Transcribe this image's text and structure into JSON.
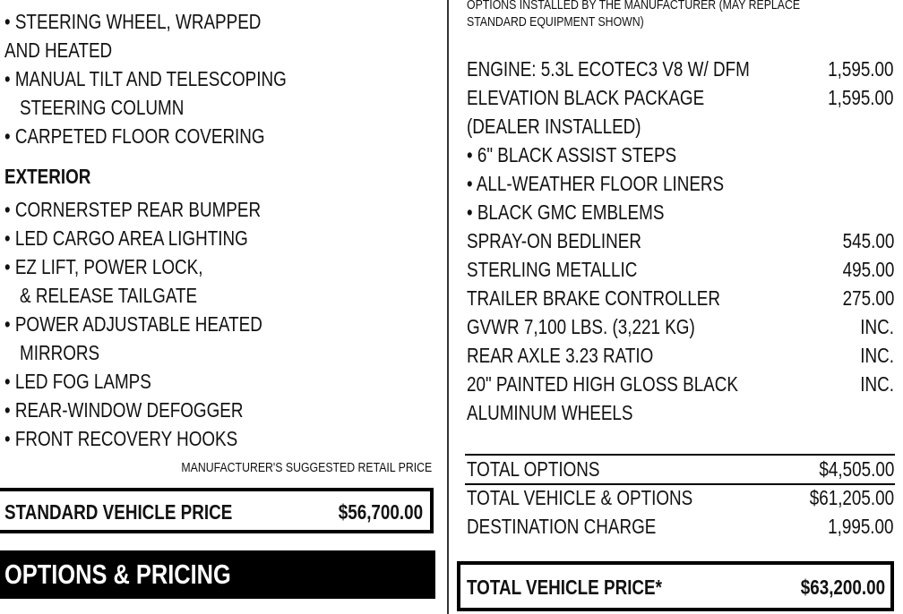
{
  "left": {
    "interior_lines": [
      "• STEERING WHEEL, WRAPPED",
      "AND HEATED",
      "• MANUAL TILT AND TELESCOPING",
      "STEERING COLUMN",
      "• CARPETED FLOOR COVERING"
    ],
    "exterior_heading": "EXTERIOR",
    "exterior_lines": [
      "• CORNERSTEP REAR BUMPER",
      "• LED CARGO AREA LIGHTING",
      "• EZ LIFT, POWER LOCK,",
      "& RELEASE TAILGATE",
      "• POWER ADJUSTABLE HEATED",
      "MIRRORS",
      "• LED FOG LAMPS",
      "• REAR-WINDOW DEFOGGER",
      "• FRONT RECOVERY HOOKS"
    ],
    "msrp_label": "MANUFACTURER'S SUGGESTED RETAIL PRICE",
    "standard_label": "STANDARD VEHICLE PRICE",
    "standard_price": "$56,700.00",
    "options_heading": "OPTIONS & PRICING"
  },
  "right": {
    "note_lines": [
      "OPTIONS INSTALLED BY THE MANUFACTURER (MAY REPLACE",
      "STANDARD EQUIPMENT SHOWN)"
    ],
    "rows": [
      {
        "label": "ENGINE:  5.3L ECOTEC3 V8 W/ DFM",
        "price": "1,595.00"
      },
      {
        "label": "ELEVATION BLACK PACKAGE",
        "price": "1,595.00"
      },
      {
        "label": "(DEALER INSTALLED)"
      },
      {
        "label": "• 6\" BLACK ASSIST STEPS"
      },
      {
        "label": "• ALL-WEATHER FLOOR LINERS"
      },
      {
        "label": "• BLACK GMC EMBLEMS"
      },
      {
        "label": "SPRAY-ON BEDLINER",
        "price": "545.00"
      },
      {
        "label": "STERLING METALLIC",
        "price": "495.00"
      },
      {
        "label": "TRAILER BRAKE CONTROLLER",
        "price": "275.00"
      },
      {
        "label": "GVWR 7,100 LBS. (3,221 KG)",
        "price": "INC."
      },
      {
        "label": "REAR AXLE 3.23 RATIO",
        "price": "INC."
      },
      {
        "label": "20\" PAINTED HIGH GLOSS BLACK",
        "price": "INC."
      },
      {
        "label": "ALUMINUM WHEELS"
      }
    ],
    "totals": [
      {
        "label": "TOTAL OPTIONS",
        "price": "$4,505.00"
      },
      {
        "label": "TOTAL VEHICLE & OPTIONS",
        "price": "$61,205.00"
      },
      {
        "label": "DESTINATION CHARGE",
        "price": "1,995.00"
      }
    ],
    "total_label": "TOTAL VEHICLE PRICE*",
    "total_price": "$63,200.00"
  }
}
